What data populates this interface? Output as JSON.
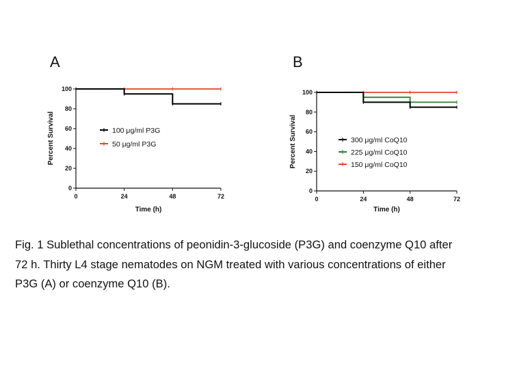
{
  "chart_data": [
    {
      "type": "line",
      "panel": "A",
      "xlabel": "Time (h)",
      "ylabel": "Percent Survival",
      "x_ticks": [
        0,
        24,
        48,
        72
      ],
      "y_ticks": [
        0,
        20,
        40,
        60,
        80,
        100
      ],
      "xlim": [
        0,
        72
      ],
      "ylim": [
        0,
        100
      ],
      "step": true,
      "legend_position": "middle-left",
      "series": [
        {
          "name": "100 μg/ml P3G",
          "color": "#000000",
          "x": [
            0,
            24,
            48,
            72
          ],
          "y": [
            100,
            95,
            85,
            85
          ]
        },
        {
          "name": "50 μg/ml P3G",
          "color": "#e8402a",
          "x": [
            0,
            24,
            48,
            72
          ],
          "y": [
            100,
            100,
            100,
            100
          ]
        }
      ]
    },
    {
      "type": "line",
      "panel": "B",
      "xlabel": "Time (h)",
      "ylabel": "Percent Survival",
      "x_ticks": [
        0,
        24,
        48,
        72
      ],
      "y_ticks": [
        0,
        20,
        40,
        60,
        80,
        100
      ],
      "xlim": [
        0,
        72
      ],
      "ylim": [
        0,
        100
      ],
      "step": true,
      "legend_position": "middle-left",
      "series": [
        {
          "name": "300 μg/ml CoQ10",
          "color": "#000000",
          "x": [
            0,
            24,
            48,
            72
          ],
          "y": [
            100,
            90,
            85,
            85
          ]
        },
        {
          "name": "225 μg/ml CoQ10",
          "color": "#2e7d32",
          "x": [
            0,
            24,
            48,
            72
          ],
          "y": [
            100,
            95,
            90,
            90
          ]
        },
        {
          "name": "150 μg/ml CoQ10",
          "color": "#e8402a",
          "x": [
            0,
            24,
            48,
            72
          ],
          "y": [
            100,
            100,
            100,
            100
          ]
        }
      ]
    }
  ],
  "caption": {
    "line1": "Fig. 1 Sublethal concentrations of peonidin-3-glucoside (P3G) and coenzyme Q10 after",
    "line2": "72 h. Thirty L4 stage nematodes on NGM treated with various concentrations of either",
    "line3": "P3G (A) or coenzyme Q10 (B)."
  }
}
